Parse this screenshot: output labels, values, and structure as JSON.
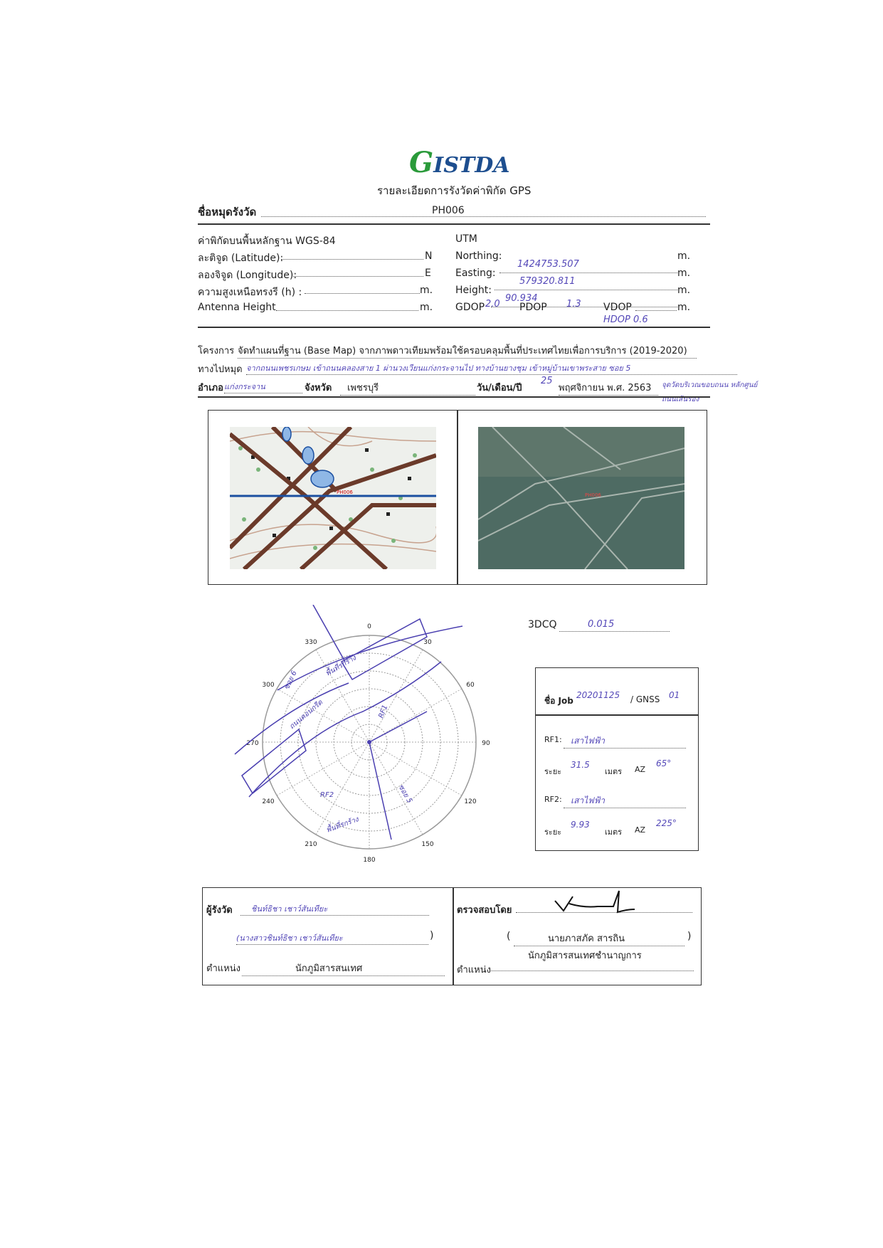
{
  "logo": {
    "text": "GISTDA"
  },
  "title": "รายละเอียดการรังวัดค่าพิกัด GPS",
  "station": {
    "label": "ชื่อหมุดรังวัด",
    "value": "PH006"
  },
  "wgs": {
    "heading": "ค่าพิกัดบนพื้นหลักฐาน WGS-84",
    "lat_label": "ละติจูด (Latitude):",
    "lat_unit": "N",
    "lon_label": "ลองจิจูด (Longitude):",
    "lon_unit": "E",
    "h_label": "ความสูงเหนือทรงรี (h) :",
    "h_unit": "m.",
    "ant_label": "Antenna Height",
    "ant_unit": "m."
  },
  "utm": {
    "heading": "UTM",
    "northing_label": "Northing:",
    "northing": "1424753.507",
    "easting_label": "Easting:",
    "easting": "579320.811",
    "height_label": "Height:",
    "height": "90.934",
    "unit": "m.",
    "gdop_label": "GDOP",
    "gdop": "2.0",
    "pdop_label": "PDOP",
    "pdop": "1.3",
    "vdop_label": "VDOP",
    "hdop": "HDOP 0.6"
  },
  "project": {
    "label": "โครงการ",
    "value": "จัดทำแผนที่ฐาน (Base Map) จากภาพดาวเทียมพร้อมใช้ครอบคลุมพื้นที่ประเทศไทยเพื่อการบริการ (2019-2020)"
  },
  "route": {
    "label": "ทางไปหมุด",
    "value": "จากถนนเพชรเกษม เข้าถนนคลองสาย 1 ผ่านวงเวียนแก่งกระจานไป ทางบ้านยางชุม เข้าหมู่บ้านเขาพระสาย ซอย 5",
    "note": "จุดวัดบริเวณขอบถนน หลักศูนย์ ถนนเส้นรอง"
  },
  "location": {
    "district_label": "อำเภอ",
    "district": "แก่งกระจาน",
    "province_label": "จังหวัด",
    "province": "เพชรบุรี",
    "date_label": "วัน/เดือน/ปี",
    "day": "25",
    "month_year": "พฤศจิกายน พ.ศ. 2563"
  },
  "images": {
    "map_label": "PH006",
    "sat_label": "PH006"
  },
  "skyplot": {
    "ticks": [
      "0",
      "30",
      "60",
      "90",
      "120",
      "150",
      "180",
      "210",
      "240",
      "270",
      "300",
      "330"
    ],
    "annotations": [
      "พื้นที่รกร้าง",
      "ซอย 6",
      "ถนนคอนกรีต",
      "RF1",
      "RF2",
      "ซอย 5",
      "พื้นที่รกร้าง"
    ]
  },
  "dcq": {
    "label": "3DCQ",
    "value": "0.015"
  },
  "job": {
    "label": "ชื่อ Job",
    "value": "20201125",
    "gnss_label": "/ GNSS",
    "gnss": "01",
    "rf1_label": "RF1:",
    "rf1": "เสาไฟฟ้า",
    "dist_label": "ระยะ",
    "dist1": "31.5",
    "m_label": "เมตร",
    "az_label": "AZ",
    "az1": "65°",
    "rf2_label": "RF2:",
    "rf2": "เสาไฟฟ้า",
    "dist2": "9.93",
    "az2": "225°"
  },
  "sign": {
    "surveyor_label": "ผู้รังวัด",
    "surveyor_sig": "ชินท์ธิชา เชาว์สันเทียะ",
    "surveyor_name": "(นางสาวชินท์ธิชา เชาว์สันเทียะ",
    "close": ")",
    "position_label": "ตำแหน่ง",
    "surveyor_position": "นักภูมิสารสนเทศ",
    "checker_label": "ตรวจสอบโดย",
    "checker_name": "นายภาสภัค สารถิน",
    "checker_position": "นักภูมิสารสนเทศชำนาญการ",
    "open": "("
  }
}
